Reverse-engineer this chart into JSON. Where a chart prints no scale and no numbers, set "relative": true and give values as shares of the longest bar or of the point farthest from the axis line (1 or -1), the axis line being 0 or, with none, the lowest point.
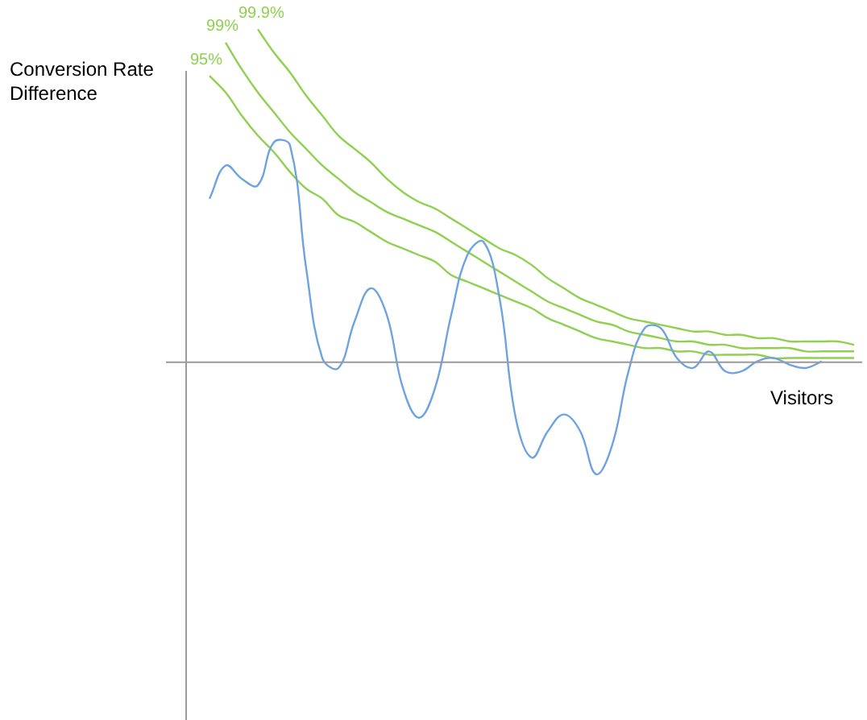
{
  "chart_data": {
    "type": "line",
    "relative": true,
    "ylabel": "Conversion Rate Difference",
    "xlabel": "Visitors",
    "legend": false,
    "marker": "none",
    "line_style": "solid",
    "categories": [
      null,
      null,
      null,
      null,
      null,
      null,
      null,
      null,
      null,
      null,
      null,
      null,
      null,
      null,
      null,
      null,
      null,
      null,
      null,
      null,
      null,
      null,
      null,
      null,
      null,
      null,
      null,
      null,
      null,
      null,
      null,
      null,
      null,
      null,
      null,
      null,
      null,
      null,
      null,
      null,
      null,
      null
    ],
    "series": [
      {
        "color": "#6fa3e0",
        "values": [
          null,
          0.49,
          0.59,
          0.55,
          0.53,
          0.66,
          0.65,
          0.28,
          0.01,
          -0.02,
          0.12,
          0.22,
          0.14,
          -0.08,
          -0.17,
          -0.08,
          0.14,
          0.32,
          0.36,
          0.19,
          -0.17,
          -0.29,
          -0.21,
          -0.16,
          -0.21,
          -0.34,
          -0.25,
          -0.03,
          0.1,
          0.1,
          0.01,
          -0.02,
          0.03,
          -0.03,
          -0.03,
          0.0,
          0.01,
          -0.01,
          -0.02,
          0.0,
          null,
          null
        ]
      },
      {
        "name": "95%",
        "color": "#8fd14f",
        "values": [
          null,
          0.86,
          0.81,
          0.74,
          0.68,
          0.63,
          0.57,
          0.52,
          0.49,
          0.44,
          0.42,
          0.39,
          0.36,
          0.34,
          0.32,
          0.3,
          0.26,
          0.24,
          0.22,
          0.2,
          0.18,
          0.16,
          0.13,
          0.11,
          0.09,
          0.07,
          0.06,
          0.05,
          0.04,
          0.04,
          0.03,
          0.03,
          0.02,
          0.02,
          0.02,
          0.02,
          0.01,
          0.01,
          0.01,
          0.01,
          0.01,
          0.01
        ]
      },
      {
        "name": "99%",
        "color": "#8fd14f",
        "values": [
          null,
          null,
          0.96,
          0.88,
          0.81,
          0.75,
          0.69,
          0.64,
          0.59,
          0.55,
          0.51,
          0.48,
          0.45,
          0.43,
          0.41,
          0.39,
          0.36,
          0.33,
          0.3,
          0.27,
          0.24,
          0.21,
          0.18,
          0.16,
          0.14,
          0.12,
          0.11,
          0.09,
          0.08,
          0.07,
          0.06,
          0.06,
          0.05,
          0.05,
          0.04,
          0.04,
          0.04,
          0.04,
          0.03,
          0.03,
          0.03,
          0.03
        ]
      },
      {
        "name": "99.9%",
        "color": "#8fd14f",
        "values": [
          null,
          null,
          null,
          null,
          1.0,
          0.93,
          0.87,
          0.8,
          0.74,
          0.68,
          0.64,
          0.6,
          0.55,
          0.51,
          0.48,
          0.46,
          0.43,
          0.4,
          0.37,
          0.34,
          0.32,
          0.29,
          0.25,
          0.22,
          0.19,
          0.17,
          0.15,
          0.13,
          0.12,
          0.11,
          0.1,
          0.09,
          0.09,
          0.08,
          0.08,
          0.07,
          0.07,
          0.06,
          0.06,
          0.06,
          0.06,
          0.05
        ]
      }
    ]
  }
}
